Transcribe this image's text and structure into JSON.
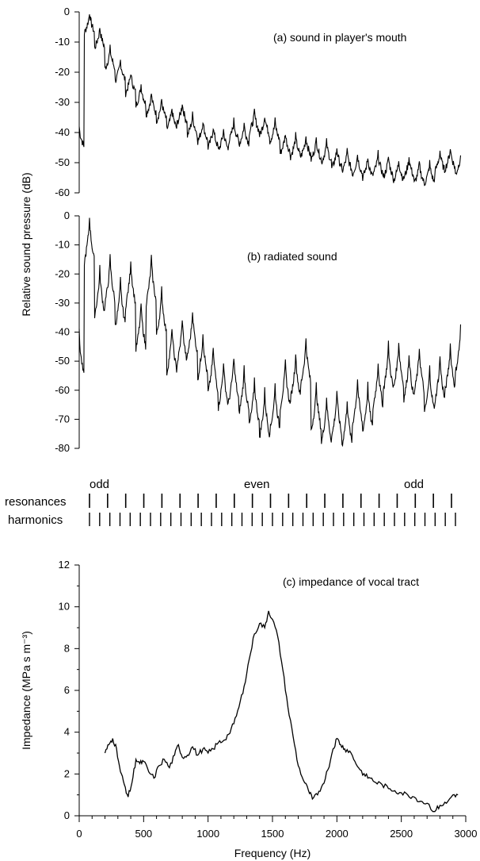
{
  "chart_data": [
    {
      "type": "line",
      "panel": "a",
      "annotation": "(a)  sound in player's mouth",
      "ylabel": "Relative sound pressure (dB)",
      "ylim": [
        -60,
        0
      ],
      "yticks": [
        "0",
        "-10",
        "-20",
        "-30",
        "-40",
        "-50",
        "-60"
      ],
      "xlim": [
        0,
        3000
      ],
      "fundamental_hz": 80,
      "harmonic_peaks_db": [
        -38,
        0,
        -5,
        -12,
        -16,
        -20,
        -24,
        -27,
        -29,
        -32,
        -30,
        -34,
        -36,
        -38,
        -39,
        -36,
        -37,
        -33,
        -34,
        -36,
        -40,
        -41,
        -41,
        -42,
        -43,
        -45,
        -46,
        -47,
        -48,
        -47,
        -48,
        -49,
        -48,
        -50,
        -50,
        -46,
        -45,
        -47,
        -49,
        -51,
        -50,
        -52,
        -54,
        -55
      ],
      "x_range_hz": [
        0,
        2960
      ]
    },
    {
      "type": "line",
      "panel": "b",
      "annotation": "(b)  radiated sound",
      "ylim": [
        -80,
        0
      ],
      "yticks": [
        "0",
        "-10",
        "-20",
        "-30",
        "-40",
        "-50",
        "-60",
        "-70",
        "-80"
      ],
      "xlim": [
        0,
        3000
      ],
      "harmonic_peaks_db": [
        -40,
        0,
        -18,
        -14,
        -22,
        -15,
        -30,
        -14,
        -25,
        -38,
        -35,
        -32,
        -40,
        -45,
        -50,
        -48,
        -52,
        -56,
        -60,
        -58,
        -50,
        -47,
        -42,
        -58,
        -62,
        -60,
        -63,
        -56,
        -58,
        -50,
        -44,
        -43,
        -47,
        -45,
        -52,
        -48,
        -44,
        -38,
        -36,
        -44,
        -48,
        -52,
        -58,
        -60
      ],
      "x_range_hz": [
        0,
        2960
      ]
    },
    {
      "type": "line",
      "panel": "c",
      "annotation": "(c)  impedance of vocal tract",
      "xlabel": "Frequency (Hz)",
      "ylabel": "Impedance  (MPa s m⁻³)",
      "xlim": [
        0,
        3000
      ],
      "ylim": [
        0,
        12
      ],
      "xticks": [
        "0",
        "500",
        "1000",
        "1500",
        "2000",
        "2500",
        "3000"
      ],
      "yticks": [
        "0",
        "2",
        "4",
        "6",
        "8",
        "10",
        "12"
      ],
      "x": [
        200,
        230,
        260,
        290,
        320,
        350,
        380,
        410,
        440,
        470,
        500,
        540,
        580,
        620,
        660,
        700,
        740,
        770,
        800,
        840,
        880,
        920,
        960,
        1000,
        1040,
        1080,
        1120,
        1160,
        1200,
        1240,
        1280,
        1320,
        1360,
        1400,
        1440,
        1470,
        1500,
        1540,
        1580,
        1620,
        1660,
        1700,
        1740,
        1780,
        1810,
        1850,
        1890,
        1930,
        1970,
        2000,
        2030,
        2060,
        2100,
        2140,
        2180,
        2220,
        2260,
        2300,
        2350,
        2400,
        2450,
        2500,
        2550,
        2600,
        2650,
        2700,
        2760,
        2800,
        2850,
        2900,
        2940
      ],
      "y": [
        3.0,
        3.4,
        3.7,
        3.2,
        2.1,
        1.5,
        0.9,
        1.6,
        2.7,
        2.5,
        2.6,
        2.1,
        1.8,
        2.4,
        2.7,
        2.3,
        2.9,
        3.4,
        2.8,
        2.9,
        3.3,
        2.9,
        3.2,
        3.0,
        3.2,
        3.5,
        3.6,
        3.9,
        4.4,
        5.2,
        6.2,
        7.5,
        8.7,
        9.2,
        9.0,
        9.8,
        9.4,
        8.6,
        7.0,
        5.2,
        3.8,
        2.4,
        1.7,
        1.2,
        0.8,
        1.0,
        1.5,
        2.2,
        3.2,
        3.7,
        3.4,
        3.2,
        3.1,
        2.6,
        2.2,
        1.9,
        1.8,
        1.6,
        1.5,
        1.3,
        1.2,
        1.1,
        1.0,
        0.9,
        0.7,
        0.6,
        0.2,
        0.5,
        0.6,
        1.0,
        1.0
      ]
    }
  ],
  "markers": {
    "resonances_label": "resonances",
    "harmonics_label": "harmonics",
    "odd_left_label": "odd",
    "even_label": "even",
    "odd_right_label": "odd",
    "resonance_count": 21,
    "harmonic_count": 37
  },
  "colors": {
    "line": "#000000",
    "background": "#ffffff"
  }
}
